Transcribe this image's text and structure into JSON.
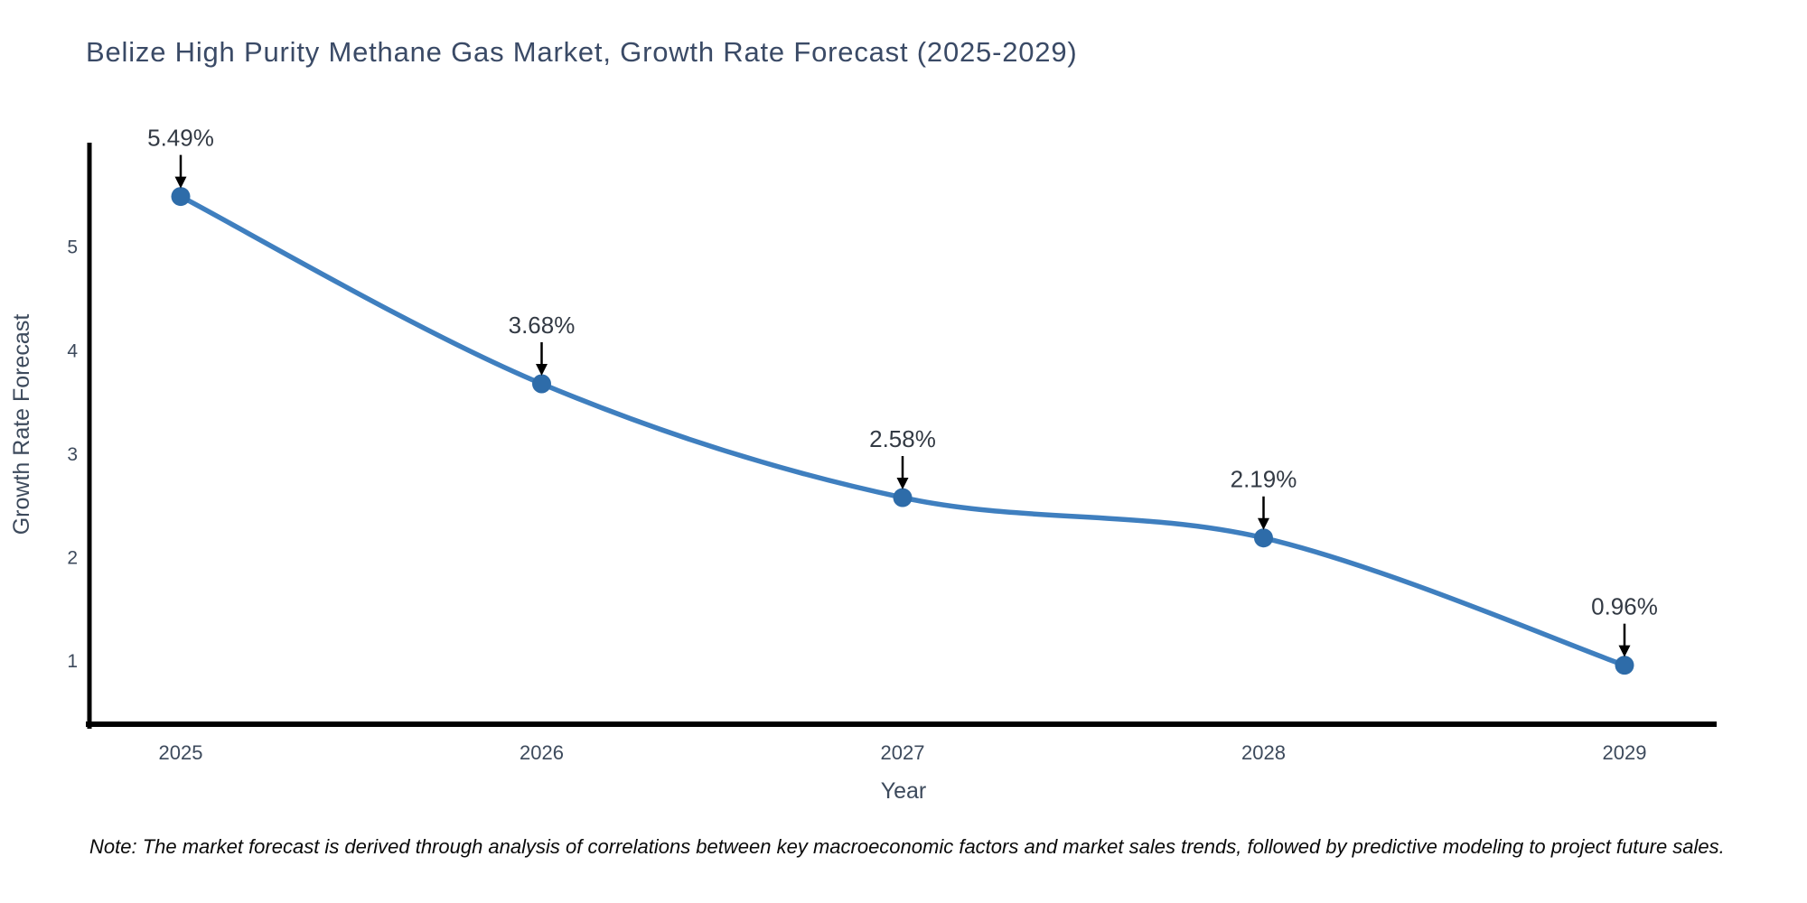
{
  "chart_data": {
    "type": "line",
    "title": "Belize High Purity Methane Gas Market, Growth Rate Forecast (2025-2029)",
    "xlabel": "Year",
    "ylabel": "Growth Rate Forecast",
    "categories": [
      "2025",
      "2026",
      "2027",
      "2028",
      "2029"
    ],
    "series": [
      {
        "name": "Growth Rate Forecast",
        "values": [
          5.49,
          3.68,
          2.58,
          2.19,
          0.96
        ]
      }
    ],
    "point_labels": [
      "5.49%",
      "3.68%",
      "2.58%",
      "2.19%",
      "0.96%"
    ],
    "yticks": [
      1,
      2,
      3,
      4,
      5
    ],
    "ylim": [
      0.39,
      6.01
    ],
    "grid": false,
    "legend": "none",
    "smooth": true,
    "line_color": "#3f7fbf",
    "marker_color": "#2e6ca9",
    "axis_color": "#000000",
    "annotation_arrow_color": "#000000"
  },
  "note": {
    "text": "Note: The market forecast is derived through analysis of correlations between key macroeconomic factors and market sales trends, followed by predictive modeling to project future sales."
  }
}
